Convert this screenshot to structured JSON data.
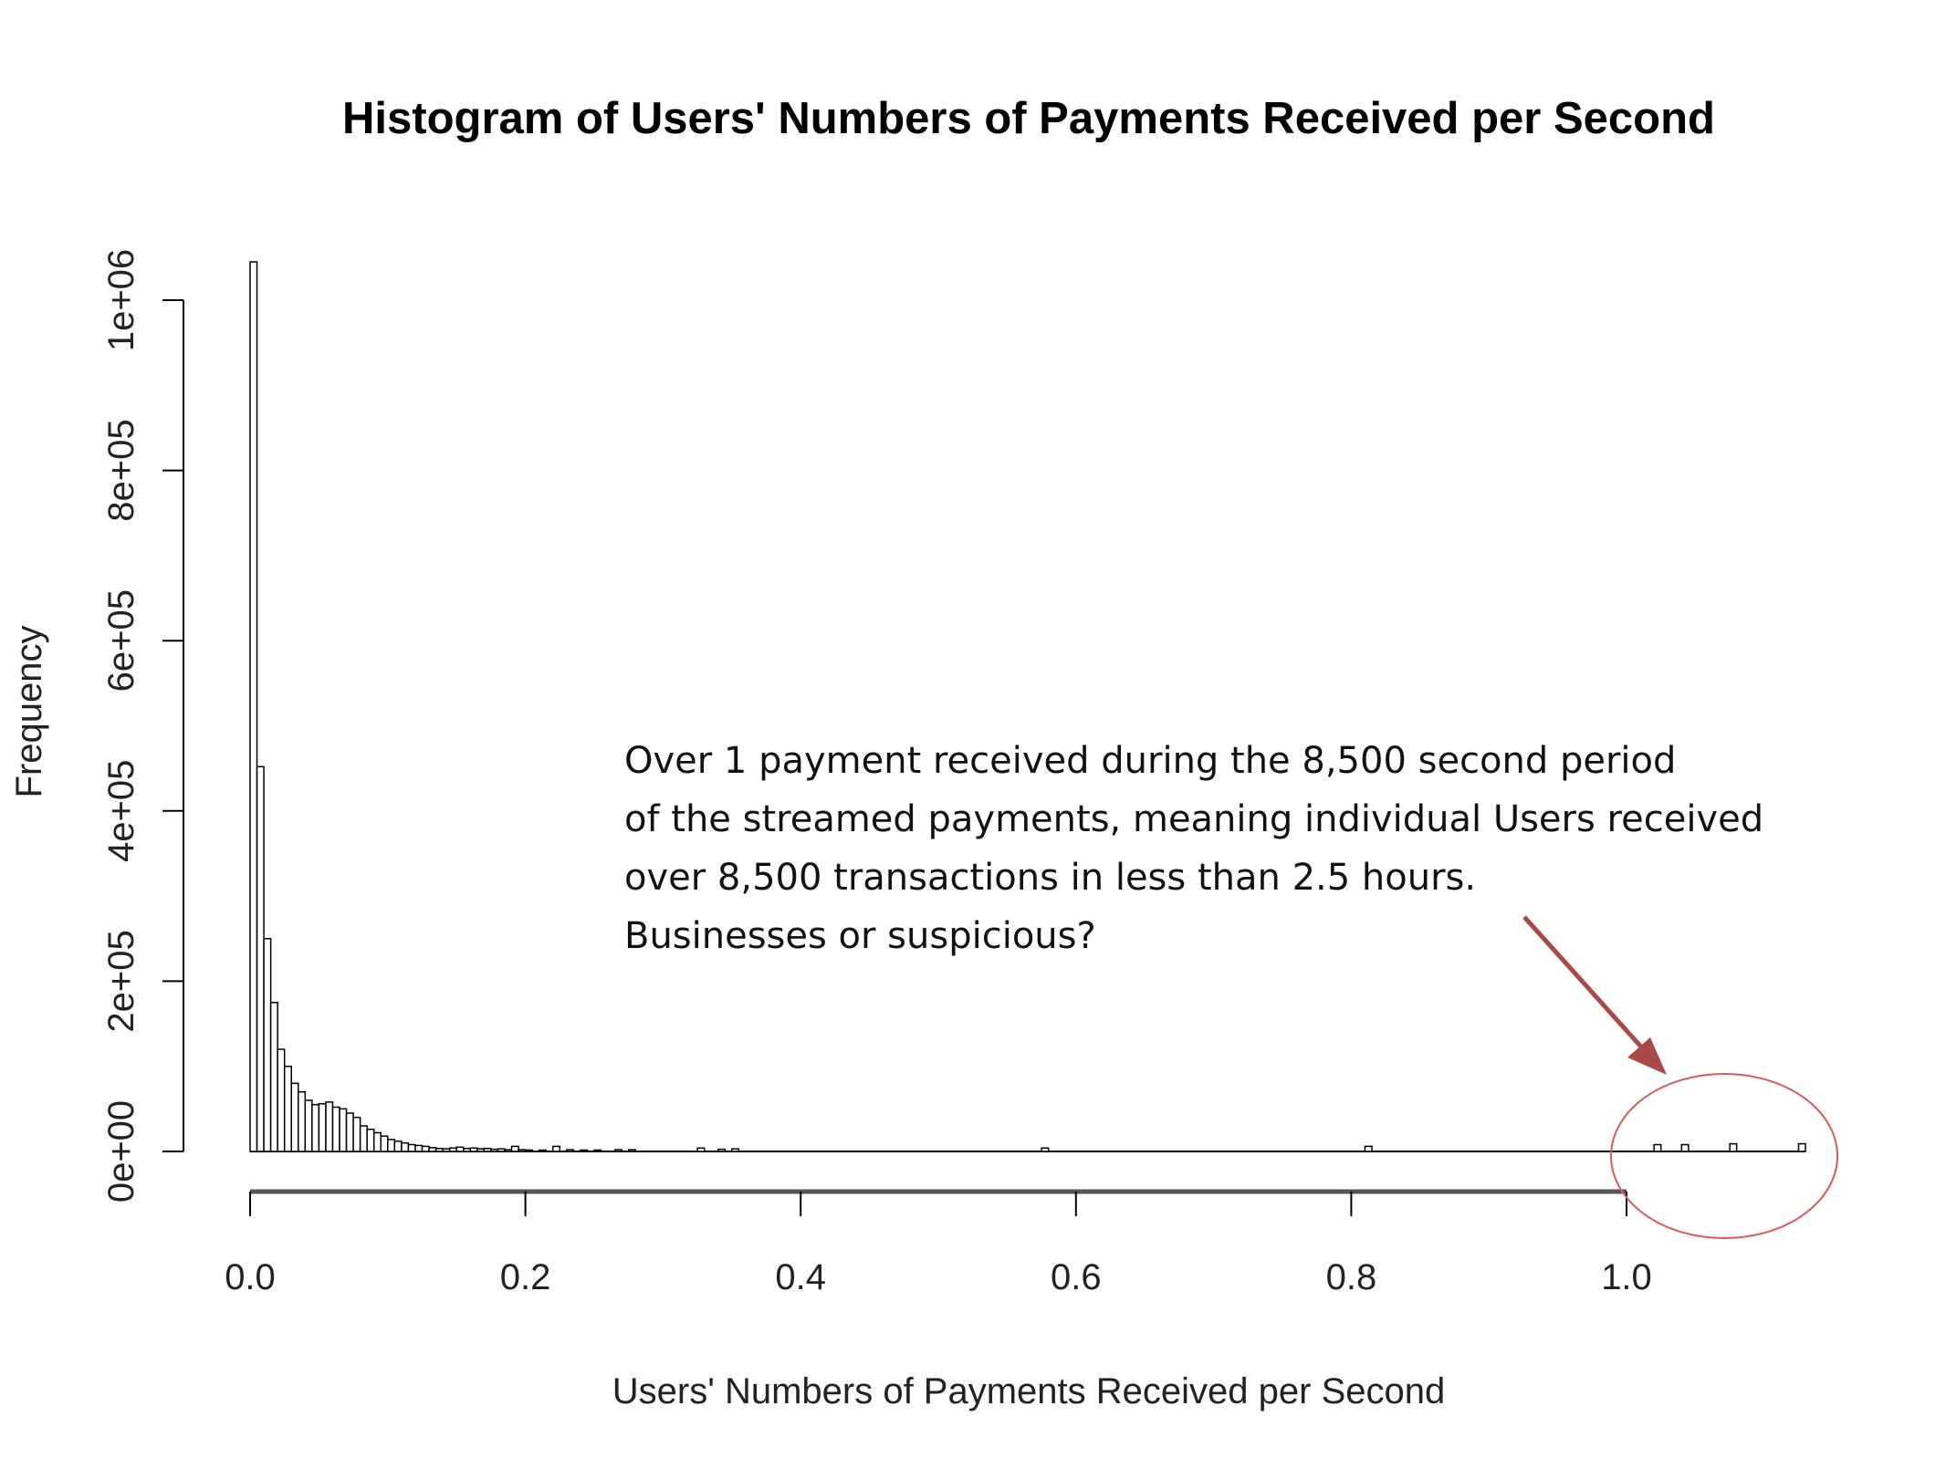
{
  "chart_data": {
    "type": "bar",
    "title": "Histogram of Users' Numbers of Payments Received per Second",
    "xlabel": "Users' Numbers of Payments Received per Second",
    "ylabel": "Frequency",
    "xlim": [
      0,
      1.13
    ],
    "ylim": [
      0,
      1050000
    ],
    "x_ticks": [
      {
        "value": 0.0,
        "label": "0.0"
      },
      {
        "value": 0.2,
        "label": "0.2"
      },
      {
        "value": 0.4,
        "label": "0.4"
      },
      {
        "value": 0.6,
        "label": "0.6"
      },
      {
        "value": 0.8,
        "label": "0.8"
      },
      {
        "value": 1.0,
        "label": "1.0"
      }
    ],
    "y_ticks": [
      {
        "value": 0,
        "label": "0e+00"
      },
      {
        "value": 200000,
        "label": "2e+05"
      },
      {
        "value": 400000,
        "label": "4e+05"
      },
      {
        "value": 600000,
        "label": "6e+05"
      },
      {
        "value": 800000,
        "label": "8e+05"
      },
      {
        "value": 1000000,
        "label": "1e+06"
      }
    ],
    "bin_width": 0.005,
    "bins": [
      {
        "x": 0.0,
        "y": 1045000
      },
      {
        "x": 0.005,
        "y": 452000
      },
      {
        "x": 0.01,
        "y": 250000
      },
      {
        "x": 0.015,
        "y": 175000
      },
      {
        "x": 0.02,
        "y": 120000
      },
      {
        "x": 0.025,
        "y": 100000
      },
      {
        "x": 0.03,
        "y": 80000
      },
      {
        "x": 0.035,
        "y": 70000
      },
      {
        "x": 0.04,
        "y": 60000
      },
      {
        "x": 0.045,
        "y": 55000
      },
      {
        "x": 0.05,
        "y": 56000
      },
      {
        "x": 0.055,
        "y": 58000
      },
      {
        "x": 0.06,
        "y": 52000
      },
      {
        "x": 0.065,
        "y": 50000
      },
      {
        "x": 0.07,
        "y": 45000
      },
      {
        "x": 0.075,
        "y": 40000
      },
      {
        "x": 0.08,
        "y": 30000
      },
      {
        "x": 0.085,
        "y": 26000
      },
      {
        "x": 0.09,
        "y": 22000
      },
      {
        "x": 0.095,
        "y": 18000
      },
      {
        "x": 0.1,
        "y": 14000
      },
      {
        "x": 0.105,
        "y": 12000
      },
      {
        "x": 0.11,
        "y": 10000
      },
      {
        "x": 0.115,
        "y": 8000
      },
      {
        "x": 0.12,
        "y": 7000
      },
      {
        "x": 0.125,
        "y": 6000
      },
      {
        "x": 0.13,
        "y": 4500
      },
      {
        "x": 0.135,
        "y": 3500
      },
      {
        "x": 0.14,
        "y": 3000
      },
      {
        "x": 0.145,
        "y": 4000
      },
      {
        "x": 0.15,
        "y": 5000
      },
      {
        "x": 0.155,
        "y": 3500
      },
      {
        "x": 0.16,
        "y": 4000
      },
      {
        "x": 0.165,
        "y": 3000
      },
      {
        "x": 0.17,
        "y": 3500
      },
      {
        "x": 0.175,
        "y": 2500
      },
      {
        "x": 0.18,
        "y": 3000
      },
      {
        "x": 0.185,
        "y": 2000
      },
      {
        "x": 0.19,
        "y": 6000
      },
      {
        "x": 0.195,
        "y": 2000
      },
      {
        "x": 0.2,
        "y": 1500
      },
      {
        "x": 0.21,
        "y": 1500
      },
      {
        "x": 0.22,
        "y": 6000
      },
      {
        "x": 0.23,
        "y": 2000
      },
      {
        "x": 0.24,
        "y": 1500
      },
      {
        "x": 0.25,
        "y": 1500
      },
      {
        "x": 0.265,
        "y": 2000
      },
      {
        "x": 0.275,
        "y": 2000
      },
      {
        "x": 0.325,
        "y": 4000
      },
      {
        "x": 0.34,
        "y": 2500
      },
      {
        "x": 0.35,
        "y": 3000
      },
      {
        "x": 0.575,
        "y": 4000
      },
      {
        "x": 0.81,
        "y": 6000
      },
      {
        "x": 1.02,
        "y": 8000
      },
      {
        "x": 1.04,
        "y": 8000
      },
      {
        "x": 1.075,
        "y": 9000
      },
      {
        "x": 1.125,
        "y": 9000
      }
    ],
    "annotation": {
      "lines": [
        "Over 1 payment received during  the 8,500 second period",
        "of the streamed payments, meaning individual Users received",
        "over 8,500 transactions in less than 2.5 hours.",
        "Businesses or suspicious?"
      ]
    },
    "colors": {
      "bar_fill": "#ffffff",
      "bar_stroke": "#000000",
      "arrow": "#a84a4a",
      "highlight_ellipse": "#d95a5a"
    }
  }
}
